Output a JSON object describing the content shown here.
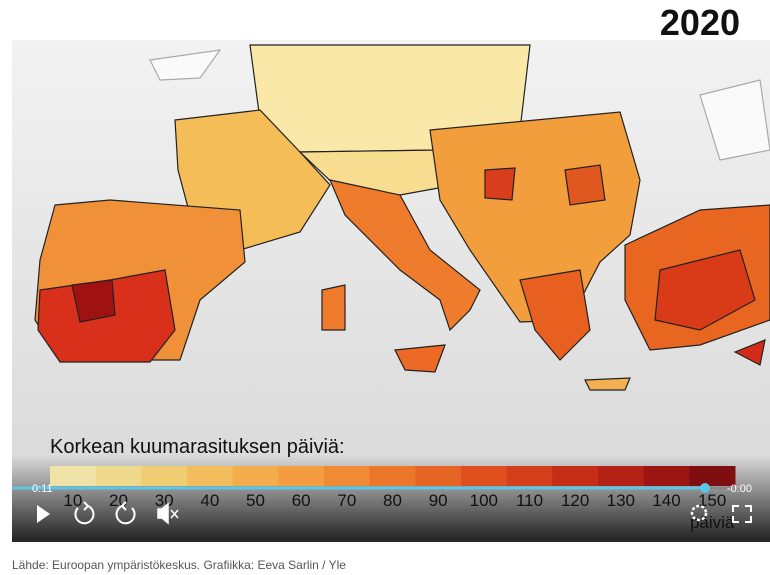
{
  "year": "2020",
  "legend": {
    "title": "Korkean kuumarasituksen päiviä:",
    "labels": [
      10,
      20,
      30,
      40,
      50,
      60,
      70,
      80,
      90,
      100,
      110,
      120,
      130,
      140,
      150
    ],
    "colors": [
      "#efe3a8",
      "#efd98c",
      "#f0cc72",
      "#f2bd5c",
      "#f3ad4c",
      "#f39c40",
      "#f08a34",
      "#ec772b",
      "#e66424",
      "#df501e",
      "#d43e1a",
      "#c62d17",
      "#b32014",
      "#9c1512",
      "#7e0e10"
    ],
    "unit": "päiviä"
  },
  "player": {
    "elapsed": "0:11",
    "remaining": "-0:00"
  },
  "source": "Lähde: Euroopan ympäristökeskus. Grafiikka: Eeva Sarlin / Yle"
}
